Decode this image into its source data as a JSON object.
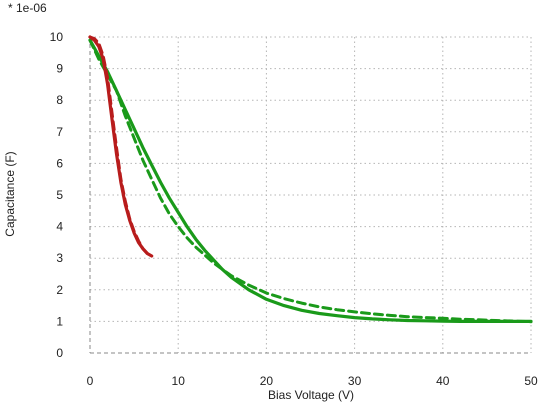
{
  "chart_data": {
    "type": "line",
    "title": "",
    "xlabel": "Bias Voltage (V)",
    "ylabel": "Capacitance (F)",
    "y_multiplier_label": "* 1e-06",
    "xlim": [
      0,
      50
    ],
    "ylim": [
      0,
      10
    ],
    "x_ticks": [
      0,
      10,
      20,
      30,
      40,
      50
    ],
    "y_ticks": [
      0,
      1,
      2,
      3,
      4,
      5,
      6,
      7,
      8,
      9,
      10
    ],
    "grid": true,
    "legend": "none",
    "series": [
      {
        "color": "#1a9a1a",
        "style": "solid",
        "x": [
          0,
          1,
          2,
          3,
          4,
          5,
          6,
          7,
          8,
          9,
          10,
          11,
          12,
          13,
          14,
          15,
          16,
          18,
          20,
          22,
          24,
          26,
          28,
          30,
          32,
          34,
          36,
          38,
          40,
          42,
          44,
          46,
          48,
          50
        ],
        "y": [
          9.9,
          9.4,
          8.9,
          8.3,
          7.7,
          7.1,
          6.5,
          5.95,
          5.4,
          4.9,
          4.45,
          4.0,
          3.6,
          3.25,
          2.95,
          2.65,
          2.4,
          2.0,
          1.7,
          1.5,
          1.35,
          1.25,
          1.18,
          1.12,
          1.08,
          1.05,
          1.03,
          1.02,
          1.01,
          1.0,
          1.0,
          1.0,
          1.0,
          1.0
        ]
      },
      {
        "color": "#1a9a1a",
        "style": "dashed",
        "x": [
          0,
          1,
          2,
          3,
          4,
          5,
          6,
          7,
          8,
          9,
          10,
          11,
          12,
          13,
          14,
          15,
          16,
          18,
          20,
          22,
          24,
          26,
          28,
          30,
          32,
          34,
          36,
          38,
          40,
          42,
          44,
          46,
          48,
          50
        ],
        "y": [
          9.9,
          9.3,
          8.8,
          8.3,
          7.5,
          6.8,
          6.1,
          5.5,
          4.9,
          4.4,
          4.0,
          3.65,
          3.35,
          3.1,
          2.85,
          2.65,
          2.45,
          2.15,
          1.9,
          1.72,
          1.58,
          1.46,
          1.37,
          1.3,
          1.24,
          1.19,
          1.15,
          1.12,
          1.1,
          1.07,
          1.05,
          1.03,
          1.01,
          0.99
        ]
      },
      {
        "color": "#b81c1c",
        "style": "solid",
        "x": [
          0,
          0.5,
          1,
          1.5,
          2,
          2.5,
          3,
          3.5,
          4,
          4.5,
          5,
          5.5,
          6,
          6.5,
          7
        ],
        "y": [
          10.0,
          9.9,
          9.7,
          9.3,
          8.5,
          7.4,
          6.3,
          5.4,
          4.7,
          4.2,
          3.8,
          3.5,
          3.3,
          3.15,
          3.07
        ]
      },
      {
        "color": "#b81c1c",
        "style": "dashed",
        "x": [
          0,
          0.5,
          1,
          1.5,
          2,
          2.5,
          3,
          3.5,
          4,
          4.5,
          5,
          5.5,
          6,
          6.5,
          7
        ],
        "y": [
          10.0,
          9.95,
          9.8,
          9.4,
          8.7,
          7.6,
          6.5,
          5.5,
          4.8,
          4.25,
          3.85,
          3.55,
          3.3,
          3.15,
          3.07
        ]
      }
    ]
  }
}
